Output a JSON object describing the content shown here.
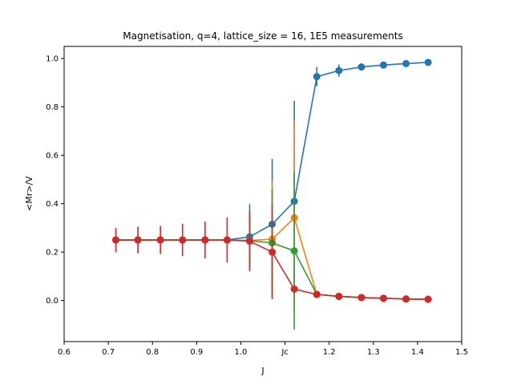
{
  "chart_data": {
    "type": "line",
    "title": "Magnetisation, q=4, lattice_size = 16, 1E5 measurements",
    "xlabel": "J",
    "ylabel": "<Mr>/V",
    "xlim": [
      0.6,
      1.5
    ],
    "ylim": [
      -0.17,
      1.05
    ],
    "xticks": [
      {
        "value": 0.6,
        "label": "0.6"
      },
      {
        "value": 0.7,
        "label": "0.7"
      },
      {
        "value": 0.8,
        "label": "0.8"
      },
      {
        "value": 0.9,
        "label": "0.9"
      },
      {
        "value": 1.0,
        "label": "1.0"
      },
      {
        "value": 1.1,
        "label": "Jc"
      },
      {
        "value": 1.2,
        "label": "1.2"
      },
      {
        "value": 1.3,
        "label": "1.3"
      },
      {
        "value": 1.4,
        "label": "1.4"
      },
      {
        "value": 1.5,
        "label": "1.5"
      }
    ],
    "yticks": [
      {
        "value": 0.0,
        "label": "0.0"
      },
      {
        "value": 0.2,
        "label": "0.2"
      },
      {
        "value": 0.4,
        "label": "0.4"
      },
      {
        "value": 0.6,
        "label": "0.6"
      },
      {
        "value": 0.8,
        "label": "0.8"
      },
      {
        "value": 1.0,
        "label": "1.0"
      }
    ],
    "grid": false,
    "x": [
      0.717,
      0.767,
      0.818,
      0.868,
      0.919,
      0.969,
      1.02,
      1.071,
      1.121,
      1.172,
      1.222,
      1.273,
      1.323,
      1.374,
      1.424
    ],
    "series": [
      {
        "color": "#1f77b4",
        "values": [
          0.25,
          0.25,
          0.25,
          0.25,
          0.25,
          0.25,
          0.263,
          0.315,
          0.41,
          0.925,
          0.95,
          0.965,
          0.973,
          0.979,
          0.984
        ],
        "errors": [
          0.005,
          0.005,
          0.006,
          0.006,
          0.007,
          0.008,
          0.135,
          0.27,
          0.415,
          0.04,
          0.025,
          0.015,
          0.01,
          0.007,
          0.005
        ]
      },
      {
        "color": "#ff7f0e",
        "values": [
          0.25,
          0.25,
          0.25,
          0.25,
          0.25,
          0.25,
          0.248,
          0.253,
          0.342,
          0.025,
          0.017,
          0.012,
          0.009,
          0.006,
          0.005
        ],
        "errors": [
          0.005,
          0.005,
          0.006,
          0.006,
          0.007,
          0.008,
          0.1,
          0.24,
          0.4,
          0.008,
          0.006,
          0.005,
          0.004,
          0.003,
          0.002
        ]
      },
      {
        "color": "#2ca02c",
        "values": [
          0.25,
          0.25,
          0.25,
          0.25,
          0.25,
          0.25,
          0.247,
          0.238,
          0.205,
          0.025,
          0.017,
          0.012,
          0.009,
          0.006,
          0.005
        ],
        "errors": [
          0.005,
          0.005,
          0.006,
          0.006,
          0.007,
          0.008,
          0.1,
          0.22,
          0.325,
          0.008,
          0.006,
          0.005,
          0.004,
          0.003,
          0.002
        ]
      },
      {
        "color": "#d62728",
        "values": [
          0.25,
          0.25,
          0.25,
          0.25,
          0.25,
          0.25,
          0.245,
          0.2,
          0.047,
          0.025,
          0.017,
          0.012,
          0.009,
          0.006,
          0.005
        ],
        "errors": [
          0.05,
          0.055,
          0.058,
          0.067,
          0.076,
          0.093,
          0.125,
          0.195,
          0.015,
          0.008,
          0.006,
          0.005,
          0.004,
          0.003,
          0.002
        ]
      }
    ]
  }
}
